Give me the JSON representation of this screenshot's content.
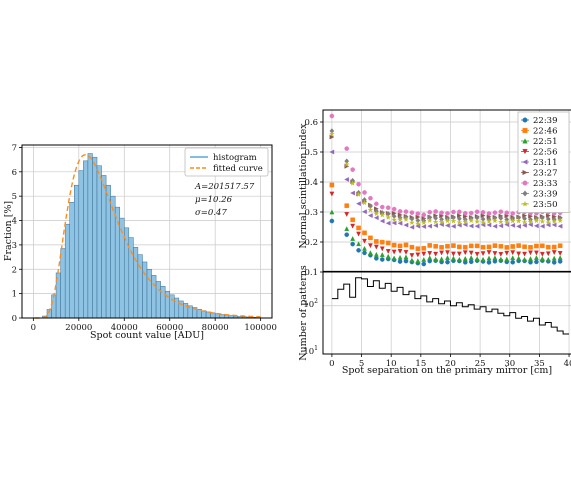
{
  "chart_data": [
    {
      "type": "histogram",
      "xlabel": "Spot count value [ADU]",
      "ylabel": "Fraction [%]",
      "xlim": [
        -5000,
        105000
      ],
      "ylim": [
        0,
        7.1
      ],
      "xticks": [
        0,
        20000,
        40000,
        60000,
        80000,
        100000
      ],
      "yticks": [
        0,
        1,
        2,
        3,
        4,
        5,
        6,
        7
      ],
      "grid": true,
      "legend_position": "top-right",
      "legend": [
        {
          "label": "histogram",
          "color": "#5aa9d6"
        },
        {
          "label": "fitted curve",
          "color": "#ff8c1a"
        }
      ],
      "annotations": [
        "A=201517.57",
        "μ=10.26",
        "σ=0.47"
      ],
      "fit": {
        "A": 201517.57,
        "mu": 10.26,
        "sigma": 0.47,
        "bin_width": 2000
      },
      "bin_width": 2000,
      "bins_x": [
        1000,
        3000,
        5000,
        7000,
        9000,
        11000,
        13000,
        15000,
        17000,
        19000,
        21000,
        23000,
        25000,
        27000,
        29000,
        31000,
        33000,
        35000,
        37000,
        39000,
        41000,
        43000,
        45000,
        47000,
        49000,
        51000,
        53000,
        55000,
        57000,
        59000,
        61000,
        63000,
        65000,
        67000,
        69000,
        71000,
        73000,
        75000,
        77000,
        79000,
        81000,
        83000,
        85000,
        87000,
        89000,
        91000,
        93000,
        95000,
        97000,
        99000
      ],
      "values": [
        0.0,
        0.01,
        0.08,
        0.35,
        0.95,
        1.85,
        2.85,
        3.85,
        4.75,
        5.45,
        6.05,
        6.45,
        6.75,
        6.6,
        6.25,
        5.85,
        5.45,
        5.0,
        4.55,
        4.1,
        3.7,
        3.3,
        2.9,
        2.6,
        2.3,
        2.0,
        1.75,
        1.5,
        1.3,
        1.1,
        0.95,
        0.82,
        0.7,
        0.6,
        0.5,
        0.43,
        0.36,
        0.3,
        0.25,
        0.21,
        0.17,
        0.14,
        0.12,
        0.1,
        0.08,
        0.06,
        0.05,
        0.04,
        0.03,
        0.02
      ]
    },
    {
      "type": "scatter",
      "xlabel": "Spot separation on the primary mirror [cm]",
      "ylabel": "Normal scintillation index",
      "xlim": [
        -1.5,
        40.5
      ],
      "ylim": [
        0.1,
        0.64
      ],
      "xticks": [
        0,
        5,
        10,
        15,
        20,
        25,
        30,
        35,
        40
      ],
      "yticks": [
        0.1,
        0.2,
        0.3,
        0.4,
        0.5,
        0.6
      ],
      "grid": true,
      "legend_position": "top-right",
      "x": [
        0,
        2.5,
        3.5,
        4.5,
        5.5,
        6.5,
        7.5,
        8.5,
        9.5,
        10.5,
        11.5,
        12.5,
        13.5,
        14.5,
        15.5,
        16.5,
        17.5,
        18.5,
        19.5,
        20.5,
        21.5,
        22.5,
        23.5,
        24.5,
        25.5,
        26.5,
        27.5,
        28.5,
        29.5,
        30.5,
        31.5,
        32.5,
        33.5,
        34.5,
        35.5,
        36.5,
        37.5,
        38.5
      ],
      "series": [
        {
          "name": "22:39",
          "color": "#1f77b4",
          "marker": "circle",
          "plateau": 0.135,
          "start": 0.27
        },
        {
          "name": "22:46",
          "color": "#ff7f0e",
          "marker": "square",
          "plateau": 0.185,
          "start": 0.39
        },
        {
          "name": "22:51",
          "color": "#2ca02c",
          "marker": "triangle-up",
          "plateau": 0.145,
          "start": 0.3
        },
        {
          "name": "22:56",
          "color": "#d62728",
          "marker": "triangle-down",
          "plateau": 0.162,
          "start": 0.36
        },
        {
          "name": "23:11",
          "color": "#9467bd",
          "marker": "triangle-left",
          "plateau": 0.255,
          "start": 0.5
        },
        {
          "name": "23:27",
          "color": "#8c564b",
          "marker": "triangle-right",
          "plateau": 0.285,
          "start": 0.55
        },
        {
          "name": "23:33",
          "color": "#e377c2",
          "marker": "circle",
          "plateau": 0.298,
          "start": 0.62
        },
        {
          "name": "23:39",
          "color": "#7f7f7f",
          "marker": "diamond",
          "plateau": 0.278,
          "start": 0.57
        },
        {
          "name": "23:50",
          "color": "#bcbd22",
          "marker": "star",
          "plateau": 0.268,
          "start": 0.56
        }
      ]
    },
    {
      "type": "line",
      "xlabel": "Spot separation on the primary mirror [cm]",
      "ylabel": "Number of patterns",
      "yscale": "log",
      "xlim": [
        -1.5,
        40.5
      ],
      "ylim": [
        10,
        500
      ],
      "xticks": [
        0,
        5,
        10,
        15,
        20,
        25,
        30,
        35,
        40
      ],
      "yticks_labels": [
        "10¹",
        "10²"
      ],
      "steps_x": [
        0,
        1,
        2,
        3,
        4,
        5,
        6,
        7,
        8,
        9,
        10,
        11,
        12,
        13,
        14,
        15,
        16,
        17,
        18,
        19,
        20,
        21,
        22,
        23,
        24,
        25,
        26,
        27,
        28,
        29,
        30,
        31,
        32,
        33,
        34,
        35,
        36,
        37,
        38,
        39
      ],
      "steps_y": [
        140,
        220,
        280,
        150,
        380,
        360,
        250,
        330,
        230,
        290,
        200,
        240,
        170,
        200,
        140,
        160,
        120,
        140,
        110,
        125,
        100,
        115,
        95,
        105,
        85,
        95,
        75,
        85,
        70,
        62,
        72,
        55,
        60,
        48,
        55,
        40,
        45,
        36,
        30,
        26
      ]
    }
  ]
}
